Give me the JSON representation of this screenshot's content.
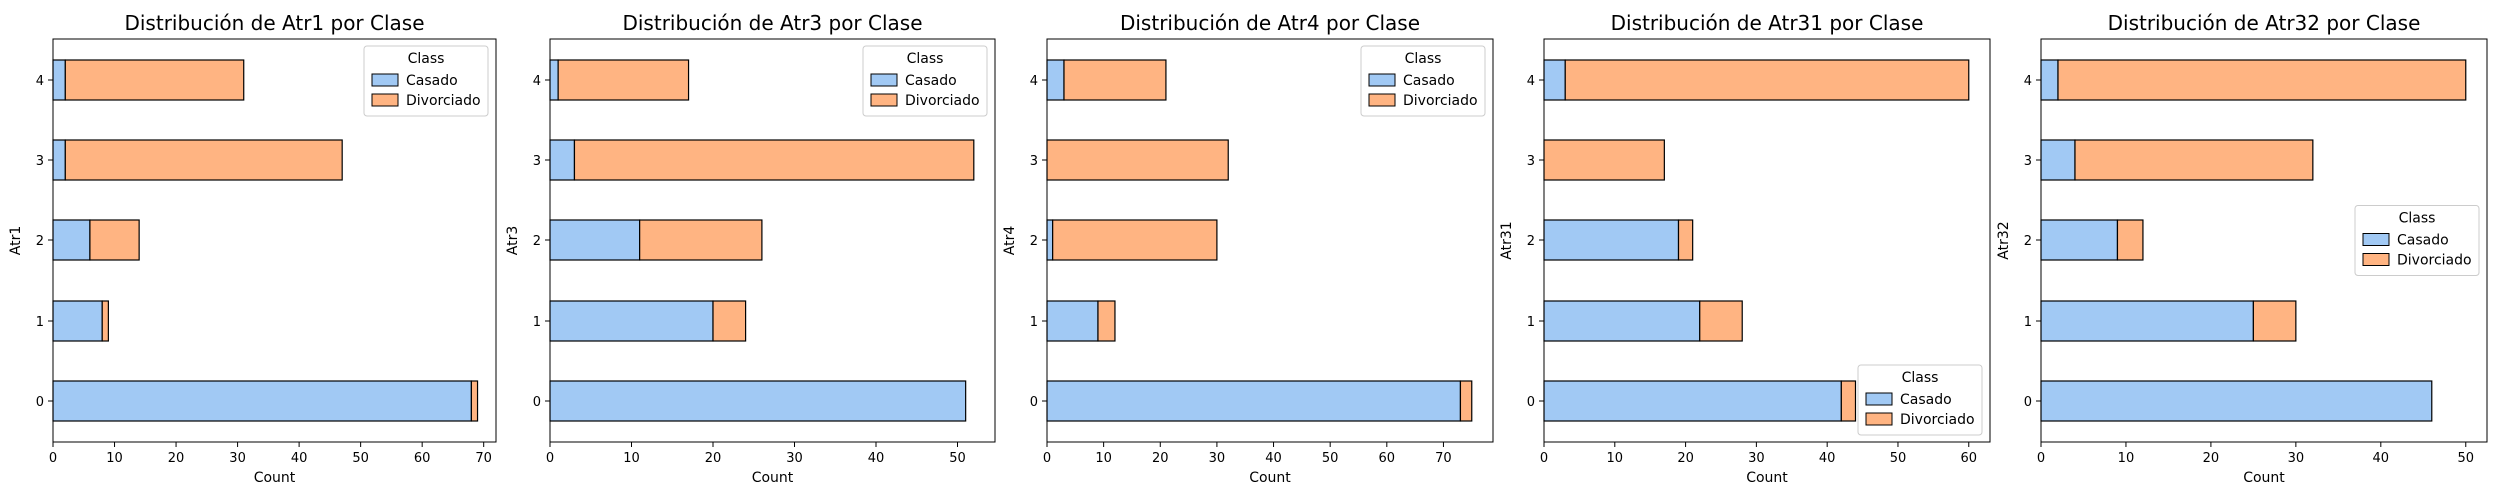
{
  "colors": {
    "casado": "#a1c9f4",
    "divorciado": "#ffb482",
    "edge": "#000000"
  },
  "chart_data": [
    {
      "type": "bar",
      "orientation": "horizontal",
      "stacked": true,
      "title": "Distribución de Atr1 por Clase",
      "xlabel": "Count",
      "ylabel": "Atr1",
      "categories": [
        "0",
        "1",
        "2",
        "3",
        "4"
      ],
      "xlim": [
        0,
        72
      ],
      "xticks": [
        "0",
        "10",
        "20",
        "30",
        "40",
        "50",
        "60",
        "70"
      ],
      "legend": {
        "title": "Class",
        "placement": "top-right"
      },
      "series": [
        {
          "name": "Casado",
          "values": [
            68,
            8,
            6,
            2,
            2
          ]
        },
        {
          "name": "Divorciado",
          "values": [
            1,
            1,
            8,
            45,
            29
          ]
        }
      ]
    },
    {
      "type": "bar",
      "orientation": "horizontal",
      "stacked": true,
      "title": "Distribución de Atr3 por Clase",
      "xlabel": "Count",
      "ylabel": "Atr3",
      "categories": [
        "0",
        "1",
        "2",
        "3",
        "4"
      ],
      "xlim": [
        0,
        54.6
      ],
      "xticks": [
        "0",
        "10",
        "20",
        "30",
        "40",
        "50"
      ],
      "legend": {
        "title": "Class",
        "placement": "top-right"
      },
      "series": [
        {
          "name": "Casado",
          "values": [
            51,
            20,
            11,
            3,
            1
          ]
        },
        {
          "name": "Divorciado",
          "values": [
            0,
            4,
            15,
            49,
            16
          ]
        }
      ]
    },
    {
      "type": "bar",
      "orientation": "horizontal",
      "stacked": true,
      "title": "Distribución de Atr4 por Clase",
      "xlabel": "Count",
      "ylabel": "Atr4",
      "categories": [
        "0",
        "1",
        "2",
        "3",
        "4"
      ],
      "xlim": [
        0,
        78.75
      ],
      "xticks": [
        "0",
        "10",
        "20",
        "30",
        "40",
        "50",
        "60",
        "70"
      ],
      "legend": {
        "title": "Class",
        "placement": "top-right"
      },
      "series": [
        {
          "name": "Casado",
          "values": [
            73,
            9,
            1,
            0,
            3
          ]
        },
        {
          "name": "Divorciado",
          "values": [
            2,
            3,
            29,
            32,
            18
          ]
        }
      ]
    },
    {
      "type": "bar",
      "orientation": "horizontal",
      "stacked": true,
      "title": "Distribución de Atr31 por Clase",
      "xlabel": "Count",
      "ylabel": "Atr31",
      "categories": [
        "0",
        "1",
        "2",
        "3",
        "4"
      ],
      "xlim": [
        0,
        63
      ],
      "xticks": [
        "0",
        "10",
        "20",
        "30",
        "40",
        "50",
        "60"
      ],
      "legend": {
        "title": "Class",
        "placement": "bottom-right"
      },
      "series": [
        {
          "name": "Casado",
          "values": [
            42,
            22,
            19,
            0,
            3
          ]
        },
        {
          "name": "Divorciado",
          "values": [
            2,
            6,
            2,
            17,
            57
          ]
        }
      ]
    },
    {
      "type": "bar",
      "orientation": "horizontal",
      "stacked": true,
      "title": "Distribución de Atr32 por Clase",
      "xlabel": "Count",
      "ylabel": "Atr32",
      "categories": [
        "0",
        "1",
        "2",
        "3",
        "4"
      ],
      "xlim": [
        0,
        52.5
      ],
      "xticks": [
        "0",
        "10",
        "20",
        "30",
        "40",
        "50"
      ],
      "legend": {
        "title": "Class",
        "placement": "center-right"
      },
      "series": [
        {
          "name": "Casado",
          "values": [
            46,
            25,
            9,
            4,
            2
          ]
        },
        {
          "name": "Divorciado",
          "values": [
            0,
            5,
            3,
            28,
            48
          ]
        }
      ]
    }
  ]
}
